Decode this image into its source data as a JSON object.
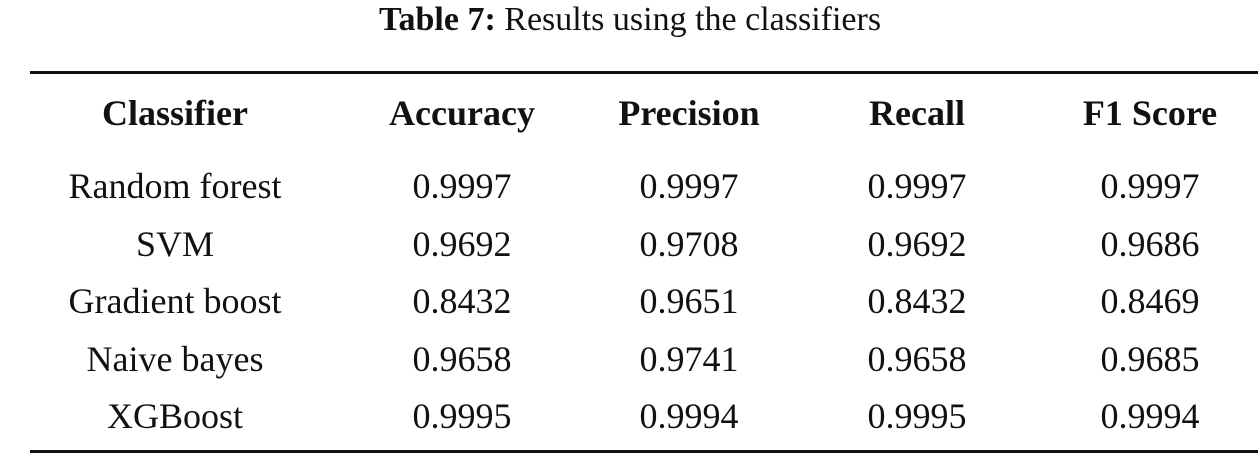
{
  "caption": {
    "label": "Table 7:",
    "text": "Results using the classifiers"
  },
  "table": {
    "header": [
      "Classifier",
      "Accuracy",
      "Precision",
      "Recall",
      "F1 Score"
    ],
    "rows": [
      [
        "Random forest",
        "0.9997",
        "0.9997",
        "0.9997",
        "0.9997"
      ],
      [
        "SVM",
        "0.9692",
        "0.9708",
        "0.9692",
        "0.9686"
      ],
      [
        "Gradient boost",
        "0.8432",
        "0.9651",
        "0.8432",
        "0.8469"
      ],
      [
        "Naive bayes",
        "0.9658",
        "0.9741",
        "0.9658",
        "0.9685"
      ],
      [
        "XGBoost",
        "0.9995",
        "0.9994",
        "0.9995",
        "0.9994"
      ]
    ]
  }
}
